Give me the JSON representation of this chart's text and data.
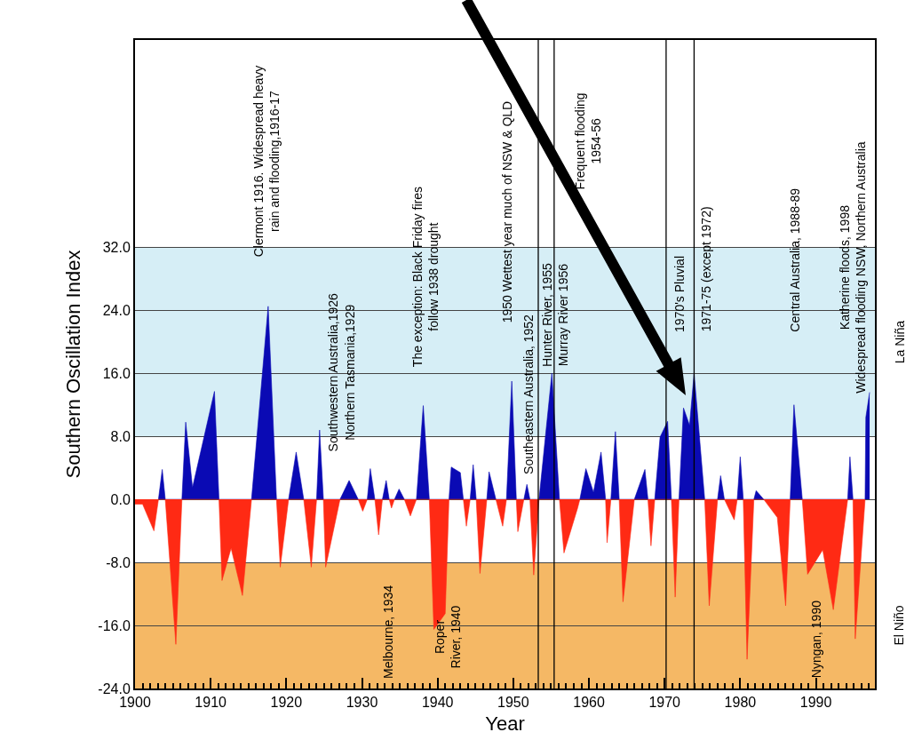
{
  "chart_data": {
    "type": "area",
    "xlabel": "Year",
    "ylabel": "Southern Oscillation Index",
    "xlim": [
      1900,
      1997.8
    ],
    "xticks": [
      1900,
      1910,
      1920,
      1930,
      1940,
      1950,
      1960,
      1970,
      1980,
      1990
    ],
    "ylim": [
      -24,
      58.3
    ],
    "yticks": [
      {
        "value": -24,
        "label": "-24.0"
      },
      {
        "value": -16,
        "label": "-16.0"
      },
      {
        "value": -8,
        "label": "-8.0"
      },
      {
        "value": 0,
        "label": "0.0"
      },
      {
        "value": 8,
        "label": "8.0"
      },
      {
        "value": 16,
        "label": "16.0"
      },
      {
        "value": 24,
        "label": "24.0"
      },
      {
        "value": 32,
        "label": "32.0"
      }
    ],
    "grid": "y",
    "series": [
      {
        "color": "#0a0ab4",
        "x": [
          1903.1,
          1903.6,
          1904.0,
          1906.2,
          1906.7,
          1907.6,
          1910.5,
          1911.1,
          1915.4,
          1917.6,
          1918.7,
          1920.3,
          1921.3,
          1922.3,
          1924.0,
          1924.4,
          1924.9,
          1927.1,
          1928.3,
          1929.5,
          1930.7,
          1931.1,
          1931.7,
          1932.7,
          1933.2,
          1933.6,
          1934.3,
          1934.9,
          1935.6,
          1937.2,
          1938.1,
          1938.9,
          1941.5,
          1941.8,
          1943.0,
          1943.4,
          1944.3,
          1944.7,
          1945.1,
          1946.5,
          1946.8,
          1947.7,
          1949.1,
          1949.8,
          1950.4,
          1951.4,
          1951.8,
          1952.2,
          1953.4,
          1955.1,
          1956.1,
          1958.8,
          1959.6,
          1960.6,
          1961.6,
          1962.2,
          1962.9,
          1963.5,
          1964.0,
          1966.0,
          1967.4,
          1967.8,
          1968.7,
          1969.4,
          1970.4,
          1970.9,
          1971.9,
          1972.5,
          1973.3,
          1973.9,
          1975.3,
          1977.0,
          1977.4,
          1977.9,
          1979.6,
          1980.0,
          1980.4,
          1981.8,
          1982.1,
          1983.1,
          1986.6,
          1987.1,
          1988.2,
          1994.2,
          1994.5,
          1994.9,
          1996.5,
          1996.6,
          1997.1
        ],
        "values": [
          0,
          3.8,
          0,
          0,
          9.8,
          1.5,
          13.7,
          0,
          0,
          24.5,
          0,
          0,
          6.0,
          0,
          0,
          8.8,
          0,
          0,
          2.4,
          0,
          0,
          3.9,
          0,
          0,
          2.4,
          0,
          0,
          1.3,
          0,
          0,
          11.9,
          0,
          0,
          4.1,
          3.4,
          0,
          0,
          4.4,
          0,
          0,
          3.5,
          0,
          0,
          15.0,
          0,
          0,
          1.9,
          0,
          0,
          16.0,
          0,
          0,
          3.9,
          0.9,
          6.0,
          0,
          0,
          8.6,
          0,
          0,
          3.8,
          0,
          0,
          7.9,
          9.9,
          0,
          0,
          11.6,
          9.4,
          16.0,
          0,
          0,
          3.0,
          0,
          0,
          5.4,
          0,
          0,
          1.1,
          0,
          0,
          12.0,
          0,
          0,
          5.4,
          0,
          0,
          10.4,
          13.6
        ]
      },
      {
        "color": "#ff2a14",
        "x": [
          1900,
          1901,
          1902.5,
          1903.1,
          1904.0,
          1905.4,
          1906.2,
          1911.1,
          1911.5,
          1912.7,
          1914.2,
          1915.4,
          1918.7,
          1919.2,
          1920.3,
          1922.3,
          1923.3,
          1924.0,
          1924.9,
          1925.2,
          1927.1,
          1929.5,
          1930.1,
          1930.7,
          1931.7,
          1932.2,
          1932.7,
          1933.6,
          1933.9,
          1934.3,
          1935.6,
          1936.4,
          1937.2,
          1938.9,
          1939.5,
          1941.0,
          1941.5,
          1943.4,
          1943.8,
          1944.3,
          1945.1,
          1945.6,
          1946.5,
          1947.7,
          1948.6,
          1949.1,
          1950.4,
          1950.6,
          1951.4,
          1952.2,
          1952.7,
          1953.4,
          1956.1,
          1956.7,
          1958.5,
          1958.8,
          1962.2,
          1962.4,
          1962.9,
          1964.0,
          1964.5,
          1966.0,
          1967.8,
          1968.2,
          1968.7,
          1970.9,
          1971.4,
          1971.9,
          1975.3,
          1975.9,
          1977.0,
          1977.9,
          1979.2,
          1979.6,
          1980.4,
          1980.9,
          1981.8,
          1983.1,
          1984.9,
          1986.0,
          1986.6,
          1988.2,
          1988.9,
          1990.9,
          1992.3,
          1994.2,
          1994.9,
          1995.2,
          1996.5
        ],
        "values": [
          -0.6,
          -0.6,
          -4.0,
          0,
          0,
          -18.4,
          0,
          0,
          -10.3,
          -6.2,
          -12.2,
          0,
          0,
          -8.6,
          0,
          0,
          -8.6,
          0,
          0,
          -8.6,
          0,
          0,
          -1.5,
          0,
          0,
          -4.5,
          0,
          0,
          -1.1,
          0,
          0,
          -2.1,
          0,
          0,
          -16.5,
          -14.5,
          0,
          0,
          -3.4,
          0,
          0,
          -9.4,
          0,
          0,
          -3.4,
          0,
          0,
          -4.1,
          0,
          0,
          -9.6,
          0,
          0,
          -6.8,
          -1.1,
          0,
          0,
          -5.5,
          0,
          0,
          -13.0,
          0,
          0,
          -5.9,
          0,
          0,
          -12.4,
          0,
          0,
          -13.5,
          0,
          0,
          -2.6,
          0,
          0,
          -20.3,
          0,
          0,
          -2.3,
          -13.5,
          0,
          0,
          -9.5,
          -6.4,
          -14.0,
          0,
          0,
          -17.7,
          0
        ]
      }
    ],
    "bands": [
      {
        "axis": "y",
        "from": 8,
        "to": 32,
        "label": "La Niña",
        "color": "#d6eef6"
      },
      {
        "axis": "y",
        "from": -24,
        "to": -8,
        "label": "El Niño",
        "color": "#f5b865"
      }
    ],
    "ref_lines": [
      {
        "axis": "x",
        "value": 1953.3,
        "color": "#000000"
      },
      {
        "axis": "x",
        "value": 1955.4,
        "color": "#000000"
      },
      {
        "axis": "x",
        "value": 1970.2,
        "color": "#000000"
      },
      {
        "axis": "x",
        "value": 1973.9,
        "color": "#000000"
      }
    ],
    "annotations": [
      "Clermont 1916. Widespread heavy\nrain and flooding,1916-17",
      "Southwestern Australia,1926\nNorthern Tasmania,1929",
      "The exception: Black Friday fires\nfollow 1938 drought",
      "1950 Wettest year much of NSW & QLD",
      "Southeastern Australia, 1952",
      "Hunter River, 1955\nMurray River 1956",
      "Frequent flooding\n1954-56",
      "1970's Pluvial",
      "1971-75 (except 1972)",
      "Central Australia, 1988-89",
      "Katherine floods, 1998\nWidespread flooding NSW, Northern Australia",
      "Melbourne, 1934",
      "Roper\nRiver, 1940",
      "Nyngan, 1990"
    ]
  }
}
